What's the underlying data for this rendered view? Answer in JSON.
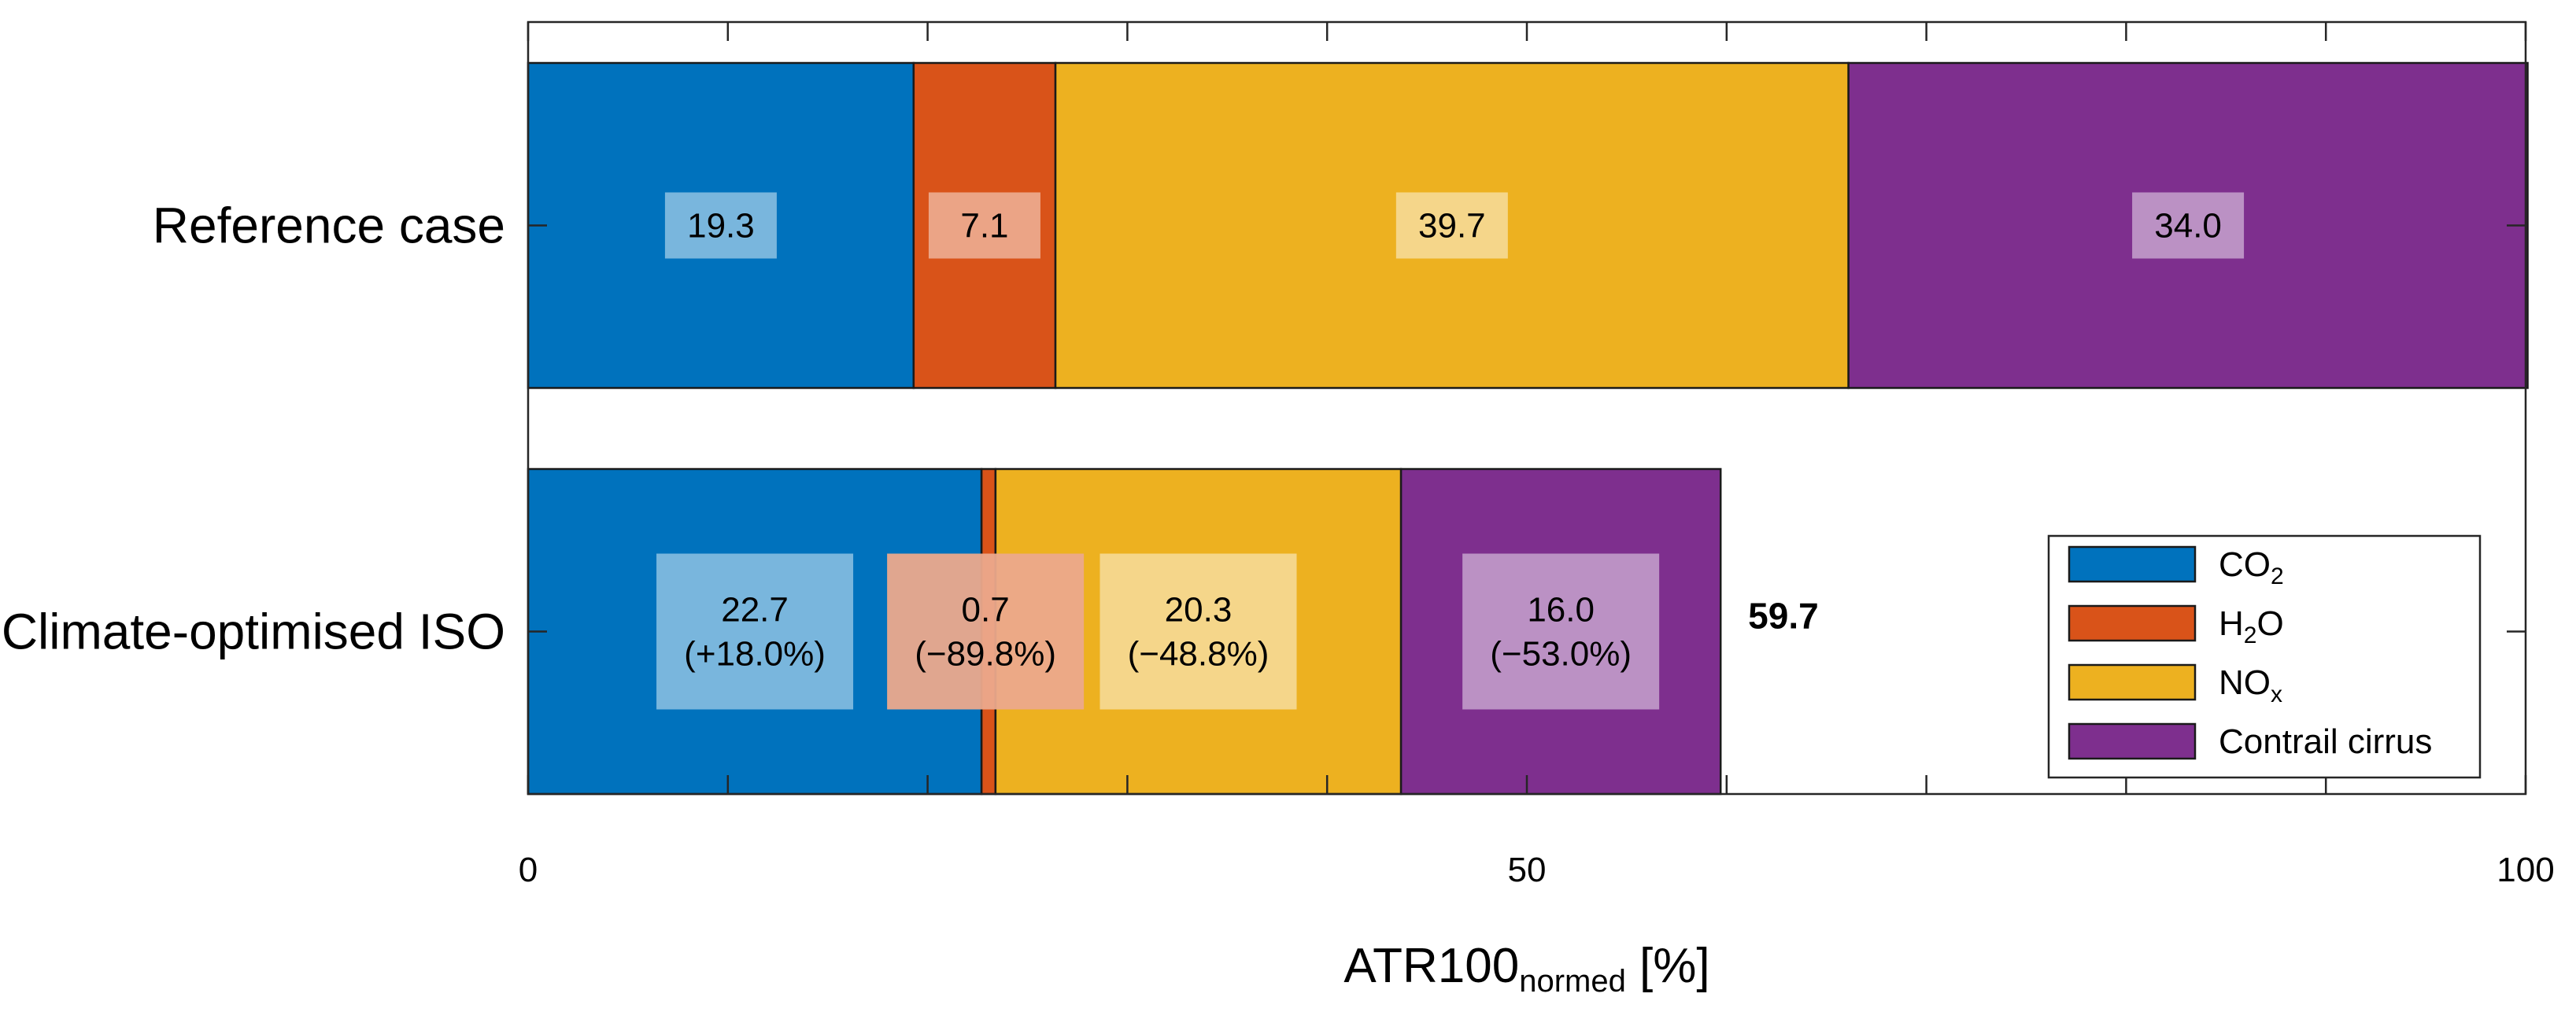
{
  "chart_data": {
    "type": "bar",
    "orientation": "horizontal",
    "stacked": true,
    "categories": [
      "Reference case",
      "Climate-optimised ISO"
    ],
    "series": [
      {
        "name": "CO2",
        "legend_main": "CO",
        "legend_sub": "2",
        "color": "#0072BD",
        "values": [
          19.3,
          22.7
        ],
        "labels": [
          [
            "19.3"
          ],
          [
            "22.7",
            "(+18.0%)"
          ]
        ]
      },
      {
        "name": "H2O",
        "legend_main": "H",
        "legend_sub": "2",
        "legend_tail": "O",
        "color": "#D95319",
        "values": [
          7.1,
          0.7
        ],
        "labels": [
          [
            "7.1"
          ],
          [
            "0.7",
            "(−89.8%)"
          ]
        ]
      },
      {
        "name": "NOx",
        "legend_main": "NO",
        "legend_sub": "x",
        "color": "#EDB120",
        "values": [
          39.7,
          20.3
        ],
        "labels": [
          [
            "39.7"
          ],
          [
            "20.3",
            "(−48.8%)"
          ]
        ]
      },
      {
        "name": "Contrail cirrus",
        "legend_main": "Contrail cirrus",
        "color": "#7E2F8E",
        "values": [
          34.0,
          16.0
        ],
        "labels": [
          [
            "34.0"
          ],
          [
            "16.0",
            "(−53.0%)"
          ]
        ]
      }
    ],
    "totals": [
      "",
      "59.7"
    ],
    "xlim": [
      0,
      100
    ],
    "x_ticks": [
      0,
      10,
      20,
      30,
      40,
      50,
      60,
      70,
      80,
      90,
      100
    ],
    "x_tick_labels": {
      "0": "0",
      "50": "50",
      "100": "100"
    },
    "xlabel_main": "ATR100",
    "xlabel_sub": "normed",
    "xlabel_tail": " [%]",
    "legend_position": "lower-right",
    "grid": false
  }
}
